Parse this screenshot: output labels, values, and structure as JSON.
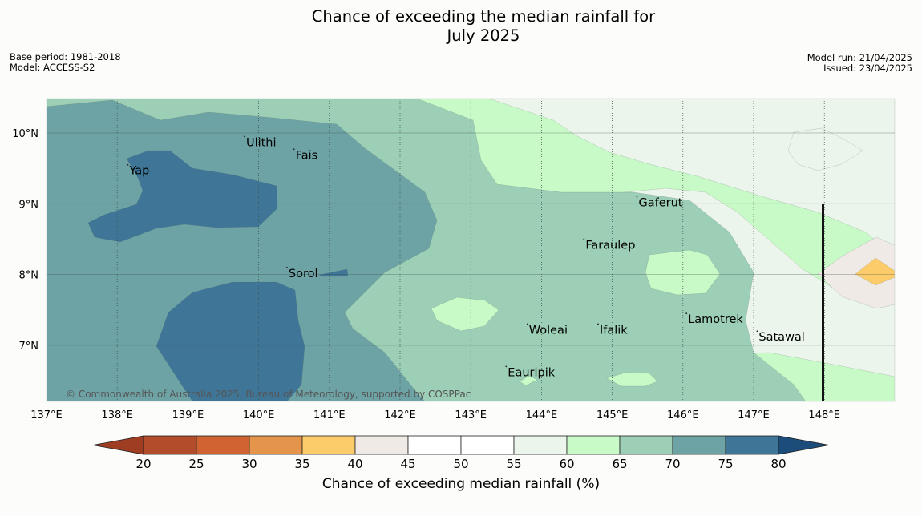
{
  "title_line1": "Chance of exceeding the median rainfall for",
  "title_line2": "July 2025",
  "base_period": "Base period: 1981-2018",
  "model": "Model: ACCESS-S2",
  "model_run": "Model run: 21/04/2025",
  "issued": "Issued: 23/04/2025",
  "copyright": "© Commonwealth of Australia 2025, Bureau of Meteorology, supported by COSPPac",
  "lon_labels": [
    "137°E",
    "138°E",
    "139°E",
    "140°E",
    "141°E",
    "142°E",
    "143°E",
    "144°E",
    "145°E",
    "146°E",
    "147°E",
    "148°E"
  ],
  "lat_labels": [
    "10°N",
    "9°N",
    "8°N",
    "7°N"
  ],
  "places": [
    {
      "name": "Ulithi",
      "lon": 139.8,
      "lat": 9.95
    },
    {
      "name": "Fais",
      "lon": 140.5,
      "lat": 9.77
    },
    {
      "name": "Yap",
      "lon": 138.15,
      "lat": 9.55
    },
    {
      "name": "Gaferut",
      "lon": 145.35,
      "lat": 9.1
    },
    {
      "name": "Faraulep",
      "lon": 144.6,
      "lat": 8.5
    },
    {
      "name": "Sorol",
      "lon": 140.4,
      "lat": 8.1
    },
    {
      "name": "Lamotrek",
      "lon": 146.05,
      "lat": 7.45
    },
    {
      "name": "Woleai",
      "lon": 143.8,
      "lat": 7.3
    },
    {
      "name": "Ifalik",
      "lon": 144.8,
      "lat": 7.3
    },
    {
      "name": "Satawal",
      "lon": 147.05,
      "lat": 7.2
    },
    {
      "name": "Eauripik",
      "lon": 143.5,
      "lat": 6.7
    }
  ],
  "colorbar": {
    "title": "Chance of exceeding median rainfall (%)",
    "ticks": [
      "20",
      "25",
      "30",
      "35",
      "40",
      "45",
      "50",
      "55",
      "60",
      "65",
      "70",
      "75",
      "80"
    ],
    "colors": [
      "#9e3d22",
      "#b24c2a",
      "#d06332",
      "#e5954b",
      "#fdcc6a",
      "#efeae6",
      "#ffffff",
      "#ffffff",
      "#ecf5eb",
      "#c8fac8",
      "#9ccfb5",
      "#6ea3a5",
      "#3f7698",
      "#1c4c7a"
    ]
  },
  "map_colors": {
    "c55_60": "#ecf5eb",
    "c60_65": "#c8fac8",
    "c65_70": "#9ccfb5",
    "c70_75": "#6ea3a5",
    "c75_80": "#3f7698",
    "c40_45": "#efeae6",
    "c35_40": "#fdcc6a"
  },
  "chart_data": {
    "type": "heatmap",
    "title": "Chance of exceeding the median rainfall for July 2025",
    "xlabel": "",
    "ylabel": "",
    "xlim": [
      137,
      149
    ],
    "ylim": [
      6.2,
      10.5
    ],
    "legend": "colorbar-bottom",
    "colorbar_label": "Chance of exceeding median rainfall (%)",
    "levels": [
      20,
      25,
      30,
      35,
      40,
      45,
      50,
      55,
      60,
      65,
      70,
      75,
      80
    ],
    "regions": [
      {
        "range": "75-80",
        "area": "around Yap and south of Sorol"
      },
      {
        "range": "70-75",
        "area": "western part, 137°E-142°E"
      },
      {
        "range": "65-70",
        "area": "central part, 142°E-146°E"
      },
      {
        "range": "60-65",
        "area": "band from 143°E to 147°E"
      },
      {
        "range": "55-60",
        "area": "north-east, 144°E-149°E"
      },
      {
        "range": "40-45",
        "area": "near 148.5°E, 8°N"
      },
      {
        "range": "35-40",
        "area": "near 148.8°E, 8°N"
      }
    ]
  }
}
